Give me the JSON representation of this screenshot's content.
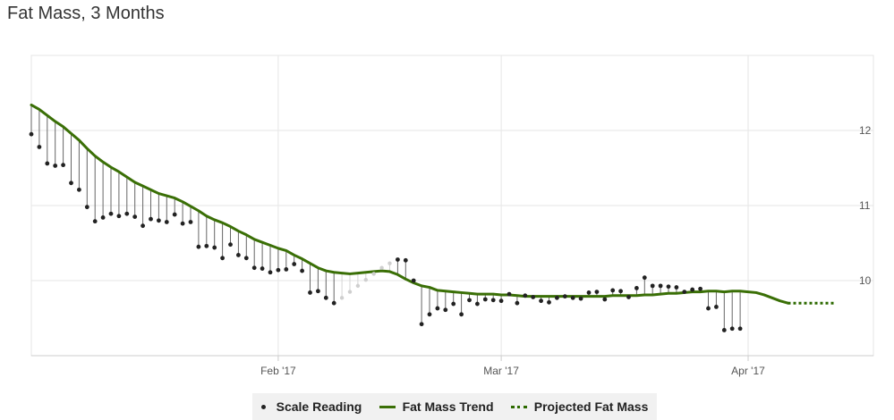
{
  "title": "Fat Mass, 3 Months",
  "colors": {
    "trend": "#3a6f06",
    "projected": "#2d6a00",
    "reading": "#222222",
    "sinker": "#666666",
    "grid": "#e6e6e6"
  },
  "legend": {
    "scale_reading": "Scale Reading",
    "fat_mass_trend": "Fat Mass Trend",
    "projected_fat_mass": "Projected Fat Mass"
  },
  "chart_data": {
    "type": "line",
    "title": "Fat Mass, 3 Months",
    "x_tick_labels": [
      "Feb '17",
      "Mar '17",
      "Apr '17"
    ],
    "x_tick_days": [
      31,
      59,
      90
    ],
    "y_ticks": [
      10,
      11,
      12
    ],
    "xlim": [
      0,
      102
    ],
    "ylim": [
      9.0,
      13.0
    ],
    "y_axis_side": "right",
    "grid": true,
    "legend_position": "bottom-center",
    "series": [
      {
        "name": "Fat Mass Trend",
        "style": "solid",
        "x": [
          0,
          1,
          2,
          3,
          4,
          5,
          6,
          7,
          8,
          9,
          10,
          11,
          12,
          13,
          14,
          15,
          16,
          17,
          18,
          19,
          20,
          21,
          22,
          23,
          24,
          25,
          26,
          27,
          28,
          29,
          30,
          31,
          32,
          33,
          34,
          35,
          36,
          37,
          38,
          39,
          40,
          41,
          42,
          43,
          44,
          45,
          46,
          47,
          48,
          49,
          50,
          51,
          52,
          53,
          54,
          55,
          56,
          57,
          58,
          59,
          60,
          61,
          62,
          63,
          64,
          65,
          66,
          67,
          68,
          69,
          70,
          71,
          72,
          73,
          74,
          75,
          76,
          77,
          78,
          79,
          80,
          81,
          82,
          83,
          84,
          85,
          86,
          87,
          88,
          89,
          90,
          91,
          92,
          93,
          94,
          95
        ],
        "values": [
          12.34,
          12.28,
          12.2,
          12.12,
          12.05,
          11.96,
          11.87,
          11.76,
          11.66,
          11.58,
          11.51,
          11.45,
          11.38,
          11.31,
          11.26,
          11.21,
          11.16,
          11.13,
          11.1,
          11.05,
          10.99,
          10.93,
          10.86,
          10.81,
          10.77,
          10.72,
          10.66,
          10.61,
          10.55,
          10.51,
          10.47,
          10.43,
          10.4,
          10.34,
          10.29,
          10.23,
          10.17,
          10.13,
          10.11,
          10.1,
          10.09,
          10.1,
          10.11,
          10.12,
          10.13,
          10.12,
          10.08,
          10.02,
          9.97,
          9.93,
          9.91,
          9.87,
          9.86,
          9.85,
          9.84,
          9.83,
          9.82,
          9.82,
          9.82,
          9.81,
          9.81,
          9.8,
          9.79,
          9.79,
          9.79,
          9.79,
          9.79,
          9.79,
          9.79,
          9.79,
          9.79,
          9.79,
          9.79,
          9.8,
          9.8,
          9.8,
          9.8,
          9.81,
          9.81,
          9.82,
          9.83,
          9.83,
          9.84,
          9.85,
          9.85,
          9.86,
          9.86,
          9.85,
          9.86,
          9.86,
          9.85,
          9.84,
          9.81,
          9.77,
          9.73,
          9.7
        ]
      },
      {
        "name": "Projected Fat Mass",
        "style": "dotted",
        "x": [
          95,
          101
        ],
        "values": [
          9.7,
          9.7
        ]
      },
      {
        "name": "Scale Reading",
        "style": "markers",
        "points": [
          {
            "x": 0,
            "y": 11.95
          },
          {
            "x": 1,
            "y": 11.78
          },
          {
            "x": 2,
            "y": 11.56
          },
          {
            "x": 3,
            "y": 11.53
          },
          {
            "x": 4,
            "y": 11.54
          },
          {
            "x": 5,
            "y": 11.3
          },
          {
            "x": 6,
            "y": 11.21
          },
          {
            "x": 7,
            "y": 10.98
          },
          {
            "x": 8,
            "y": 10.79
          },
          {
            "x": 9,
            "y": 10.84
          },
          {
            "x": 10,
            "y": 10.89
          },
          {
            "x": 11,
            "y": 10.86
          },
          {
            "x": 12,
            "y": 10.89
          },
          {
            "x": 13,
            "y": 10.85
          },
          {
            "x": 14,
            "y": 10.73
          },
          {
            "x": 15,
            "y": 10.82
          },
          {
            "x": 16,
            "y": 10.8
          },
          {
            "x": 17,
            "y": 10.78
          },
          {
            "x": 18,
            "y": 10.88
          },
          {
            "x": 19,
            "y": 10.76
          },
          {
            "x": 20,
            "y": 10.78
          },
          {
            "x": 21,
            "y": 10.45
          },
          {
            "x": 22,
            "y": 10.46
          },
          {
            "x": 23,
            "y": 10.44
          },
          {
            "x": 24,
            "y": 10.3
          },
          {
            "x": 25,
            "y": 10.48
          },
          {
            "x": 26,
            "y": 10.34
          },
          {
            "x": 27,
            "y": 10.3
          },
          {
            "x": 28,
            "y": 10.17
          },
          {
            "x": 29,
            "y": 10.16
          },
          {
            "x": 30,
            "y": 10.11
          },
          {
            "x": 31,
            "y": 10.14
          },
          {
            "x": 32,
            "y": 10.15
          },
          {
            "x": 33,
            "y": 10.22
          },
          {
            "x": 34,
            "y": 10.13
          },
          {
            "x": 35,
            "y": 9.84
          },
          {
            "x": 36,
            "y": 9.86
          },
          {
            "x": 37,
            "y": 9.77
          },
          {
            "x": 38,
            "y": 9.7
          },
          {
            "x": 46,
            "y": 10.28
          },
          {
            "x": 47,
            "y": 10.27
          },
          {
            "x": 48,
            "y": 10.0
          },
          {
            "x": 49,
            "y": 9.42
          },
          {
            "x": 50,
            "y": 9.55
          },
          {
            "x": 51,
            "y": 9.63
          },
          {
            "x": 52,
            "y": 9.61
          },
          {
            "x": 53,
            "y": 9.69
          },
          {
            "x": 54,
            "y": 9.55
          },
          {
            "x": 55,
            "y": 9.74
          },
          {
            "x": 56,
            "y": 9.69
          },
          {
            "x": 57,
            "y": 9.75
          },
          {
            "x": 58,
            "y": 9.74
          },
          {
            "x": 59,
            "y": 9.73
          },
          {
            "x": 60,
            "y": 9.82
          },
          {
            "x": 61,
            "y": 9.7
          },
          {
            "x": 62,
            "y": 9.8
          },
          {
            "x": 63,
            "y": 9.78
          },
          {
            "x": 64,
            "y": 9.73
          },
          {
            "x": 65,
            "y": 9.71
          },
          {
            "x": 66,
            "y": 9.77
          },
          {
            "x": 67,
            "y": 9.79
          },
          {
            "x": 68,
            "y": 9.77
          },
          {
            "x": 69,
            "y": 9.76
          },
          {
            "x": 70,
            "y": 9.84
          },
          {
            "x": 71,
            "y": 9.85
          },
          {
            "x": 72,
            "y": 9.75
          },
          {
            "x": 73,
            "y": 9.87
          },
          {
            "x": 74,
            "y": 9.86
          },
          {
            "x": 75,
            "y": 9.78
          },
          {
            "x": 76,
            "y": 9.9
          },
          {
            "x": 77,
            "y": 10.04
          },
          {
            "x": 78,
            "y": 9.93
          },
          {
            "x": 79,
            "y": 9.93
          },
          {
            "x": 80,
            "y": 9.92
          },
          {
            "x": 81,
            "y": 9.91
          },
          {
            "x": 82,
            "y": 9.85
          },
          {
            "x": 83,
            "y": 9.88
          },
          {
            "x": 84,
            "y": 9.89
          },
          {
            "x": 85,
            "y": 9.63
          },
          {
            "x": 86,
            "y": 9.65
          },
          {
            "x": 87,
            "y": 9.34
          },
          {
            "x": 88,
            "y": 9.36
          },
          {
            "x": 89,
            "y": 9.36
          }
        ]
      },
      {
        "name": "Interpolated Readings",
        "style": "faded-markers",
        "points": [
          {
            "x": 39,
            "y": 9.77
          },
          {
            "x": 40,
            "y": 9.85
          },
          {
            "x": 41,
            "y": 9.93
          },
          {
            "x": 42,
            "y": 10.01
          },
          {
            "x": 43,
            "y": 10.09
          },
          {
            "x": 44,
            "y": 10.17
          },
          {
            "x": 45,
            "y": 10.23
          }
        ]
      }
    ]
  }
}
